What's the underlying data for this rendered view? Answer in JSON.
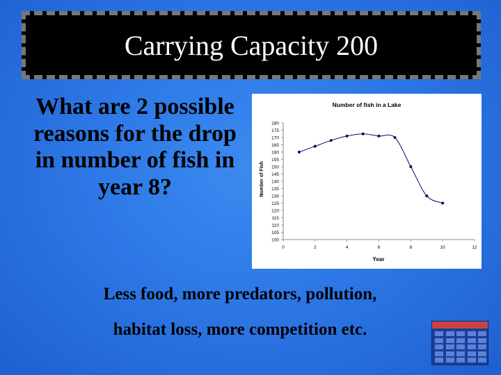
{
  "slide": {
    "title": "Carrying Capacity 200",
    "question": "What are 2 possible reasons for the drop in number of fish in year 8?",
    "answer_line1": "Less food, more predators, pollution,",
    "answer_line2": "habitat loss, more competition etc."
  },
  "chart_data": {
    "type": "line",
    "title": "Number of fish in a Lake",
    "xlabel": "Year",
    "ylabel": "Number of Fish",
    "xlim": [
      0,
      12
    ],
    "ylim": [
      100,
      180
    ],
    "x_ticks": [
      0,
      2,
      4,
      6,
      8,
      10,
      12
    ],
    "y_ticks": [
      100,
      105,
      110,
      115,
      120,
      125,
      130,
      135,
      140,
      145,
      150,
      155,
      160,
      165,
      170,
      175,
      180
    ],
    "x": [
      1,
      2,
      3,
      4,
      5,
      6,
      7,
      8,
      9,
      10
    ],
    "y": [
      160,
      164,
      168,
      171,
      172.5,
      171,
      170,
      150,
      130,
      125
    ],
    "grid": false,
    "legend": "none",
    "line_color": "#0a0a60"
  },
  "icons": {
    "jeopardy_board": "jeopardy-board-icon"
  }
}
